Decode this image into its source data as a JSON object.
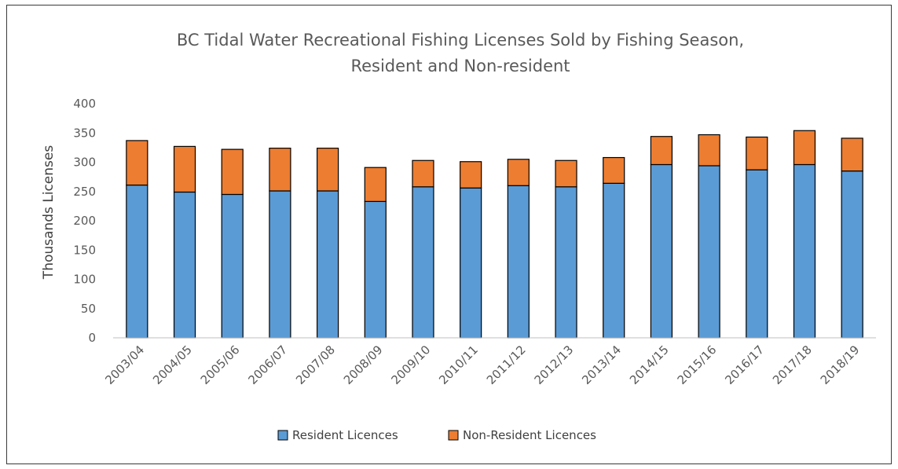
{
  "chart_data": {
    "type": "bar",
    "stacked": true,
    "title": "BC Tidal Water Recreational Fishing Licenses Sold by Fishing Season,",
    "subtitle": "Resident and Non-resident",
    "xlabel": "",
    "ylabel": "Thousands Licenses",
    "ylim": [
      0,
      400
    ],
    "yticks": [
      "0",
      "50",
      "100",
      "150",
      "200",
      "250",
      "300",
      "350",
      "400"
    ],
    "grid": false,
    "legend_position": "bottom",
    "categories": [
      "2003/04",
      "2004/05",
      "2005/06",
      "2006/07",
      "2007/08",
      "2008/09",
      "2009/10",
      "2010/11",
      "2011/12",
      "2012/13",
      "2013/14",
      "2014/15",
      "2015/16",
      "2016/17",
      "2017/18",
      "2018/19"
    ],
    "series": [
      {
        "name": "Resident Licences",
        "color": "#5B9BD5",
        "values": [
          261,
          249,
          245,
          251,
          251,
          233,
          258,
          256,
          260,
          258,
          264,
          296,
          294,
          287,
          296,
          285
        ]
      },
      {
        "name": "Non-Resident Licences",
        "color": "#ED7D31",
        "values": [
          76,
          78,
          77,
          73,
          73,
          58,
          45,
          45,
          45,
          45,
          44,
          48,
          53,
          56,
          58,
          56
        ]
      }
    ]
  }
}
